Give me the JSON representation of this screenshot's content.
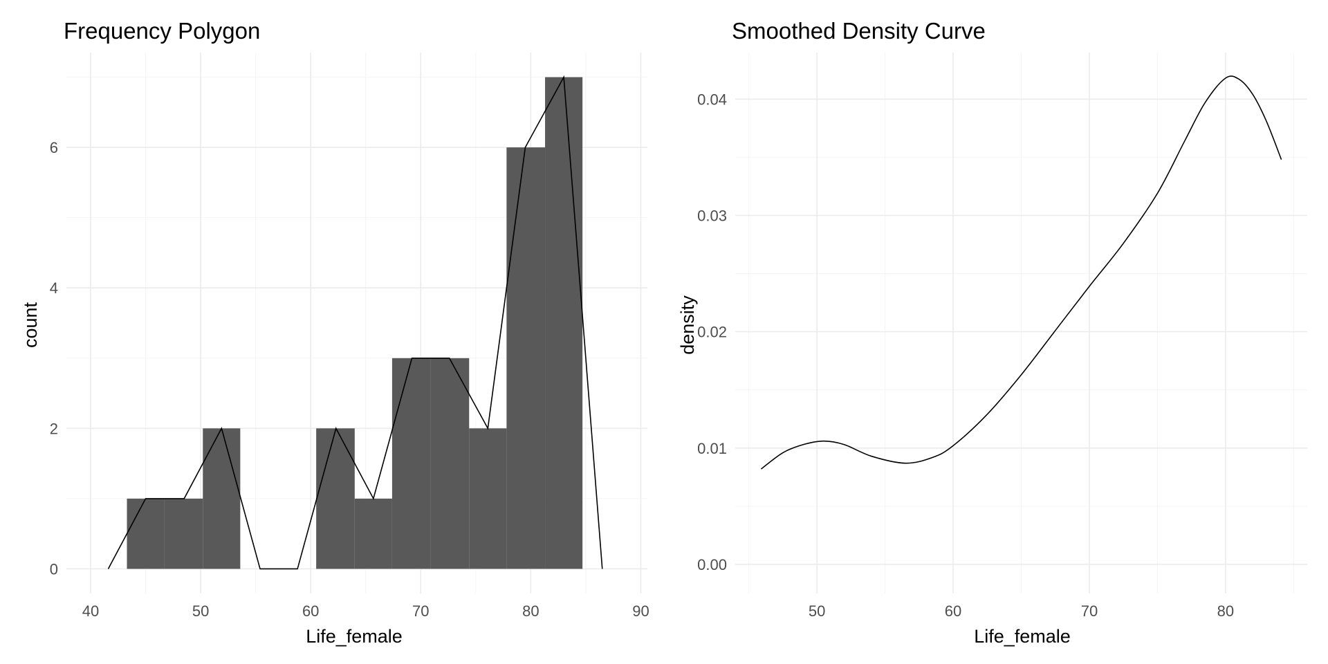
{
  "chart_data": [
    {
      "type": "histogram",
      "title": "Frequency Polygon",
      "xlabel": "Life_female",
      "ylabel": "count",
      "xlim": [
        37.8,
        90.6
      ],
      "ylim": [
        -0.35,
        7.35
      ],
      "x_ticks": [
        40,
        50,
        60,
        70,
        80,
        90
      ],
      "y_ticks": [
        0,
        2,
        4,
        6
      ],
      "grid": true,
      "bins": [
        {
          "x0": 43.3,
          "x1": 46.7,
          "count": 1
        },
        {
          "x0": 46.7,
          "x1": 50.2,
          "count": 1
        },
        {
          "x0": 50.2,
          "x1": 53.6,
          "count": 2
        },
        {
          "x0": 53.6,
          "x1": 57.1,
          "count": 0
        },
        {
          "x0": 57.1,
          "x1": 60.5,
          "count": 0
        },
        {
          "x0": 60.5,
          "x1": 64.0,
          "count": 2
        },
        {
          "x0": 64.0,
          "x1": 67.4,
          "count": 1
        },
        {
          "x0": 67.4,
          "x1": 70.9,
          "count": 3
        },
        {
          "x0": 70.9,
          "x1": 74.4,
          "count": 3
        },
        {
          "x0": 74.4,
          "x1": 77.8,
          "count": 2
        },
        {
          "x0": 77.8,
          "x1": 81.3,
          "count": 6
        },
        {
          "x0": 81.3,
          "x1": 84.7,
          "count": 7
        }
      ],
      "polygon": {
        "x": [
          41.6,
          45.0,
          48.5,
          51.9,
          55.4,
          58.8,
          62.3,
          65.7,
          69.2,
          72.6,
          76.1,
          79.5,
          83.0,
          86.5
        ],
        "y": [
          0,
          1,
          1,
          2,
          0,
          0,
          2,
          1,
          3,
          3,
          2,
          6,
          7,
          0
        ]
      }
    },
    {
      "type": "line",
      "title": "Smoothed Density Curve",
      "xlabel": "Life_female",
      "ylabel": "density",
      "xlim": [
        44.0,
        86.0
      ],
      "ylim": [
        -0.0025,
        0.044
      ],
      "x_ticks": [
        50,
        60,
        70,
        80
      ],
      "y_ticks": [
        0.0,
        0.01,
        0.02,
        0.03,
        0.04
      ],
      "y_tick_labels": [
        "0.00",
        "0.01",
        "0.02",
        "0.03",
        "0.04"
      ],
      "grid": true,
      "x": [
        45.9,
        47.5,
        49.0,
        50.5,
        52.0,
        54.0,
        56.5,
        58.5,
        60.0,
        62.5,
        65.0,
        67.5,
        70.0,
        72.5,
        75.0,
        77.0,
        78.5,
        80.0,
        81.0,
        82.0,
        83.0,
        84.1
      ],
      "y": [
        0.0082,
        0.0096,
        0.0103,
        0.0106,
        0.0103,
        0.0093,
        0.0087,
        0.0092,
        0.0102,
        0.0129,
        0.0163,
        0.0201,
        0.0239,
        0.0276,
        0.0319,
        0.0364,
        0.0397,
        0.0418,
        0.0417,
        0.0404,
        0.0381,
        0.0348
      ]
    }
  ]
}
